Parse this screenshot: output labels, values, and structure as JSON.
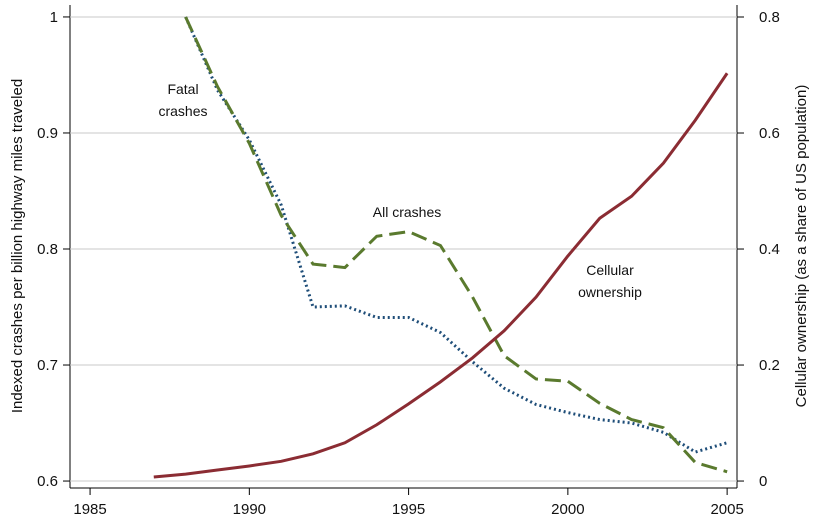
{
  "chart_data": {
    "type": "line",
    "y_label": "Indexed crashes per billion highway miles traveled",
    "y2_label": "Cellular ownership (as a share of US population)",
    "xlim": [
      1984.37,
      2005.31
    ],
    "xticks": [
      1985,
      1990,
      1995,
      2000,
      2005
    ],
    "ylim": [
      0.594,
      1.0103
    ],
    "yticks": [
      0.6,
      0.7,
      0.8,
      0.9,
      1
    ],
    "y2lim": [
      -0.012,
      0.8207
    ],
    "y2ticks": [
      0,
      0.2,
      0.4,
      0.6,
      0.8
    ],
    "grid": true,
    "annotations": [
      [
        "Fatal",
        "crashes"
      ],
      [
        "All crashes"
      ],
      [
        "Cellular",
        "ownership"
      ]
    ],
    "series": [
      {
        "name": "Fatal crashes",
        "color": "#1f4e79",
        "dash": "dotted",
        "x": [
          1988,
          1989,
          1990,
          1991,
          1992,
          1993,
          1994,
          1995,
          1996,
          1997,
          1998,
          1999,
          2000,
          2001,
          2002,
          2003,
          2004,
          2005
        ],
        "values": [
          1.0,
          0.937,
          0.894,
          0.838,
          0.75,
          0.751,
          0.741,
          0.741,
          0.728,
          0.703,
          0.68,
          0.666,
          0.659,
          0.653,
          0.65,
          0.642,
          0.625,
          0.633
        ]
      },
      {
        "name": "All crashes",
        "color": "#5a7a2e",
        "dash": "dashed",
        "x": [
          1988,
          1989,
          1990,
          1991,
          1992,
          1993,
          1994,
          1995,
          1996,
          1997,
          1998,
          1999,
          2000,
          2001,
          2002,
          2003,
          2004,
          2005
        ],
        "values": [
          1.0,
          0.94,
          0.891,
          0.829,
          0.787,
          0.784,
          0.811,
          0.815,
          0.803,
          0.759,
          0.708,
          0.688,
          0.686,
          0.667,
          0.653,
          0.646,
          0.616,
          0.608
        ]
      },
      {
        "name": "Cellular ownership",
        "color": "#8b2c33",
        "dash": "solid",
        "axis": "y2",
        "x": [
          1987,
          1988,
          1989,
          1990,
          1991,
          1992,
          1993,
          1994,
          1995,
          1996,
          1997,
          1998,
          1999,
          2000,
          2001,
          2002,
          2003,
          2004,
          2005
        ],
        "values": [
          0.007,
          0.012,
          0.019,
          0.026,
          0.034,
          0.047,
          0.066,
          0.097,
          0.133,
          0.171,
          0.212,
          0.259,
          0.317,
          0.388,
          0.453,
          0.491,
          0.548,
          0.622,
          0.703
        ]
      }
    ]
  }
}
